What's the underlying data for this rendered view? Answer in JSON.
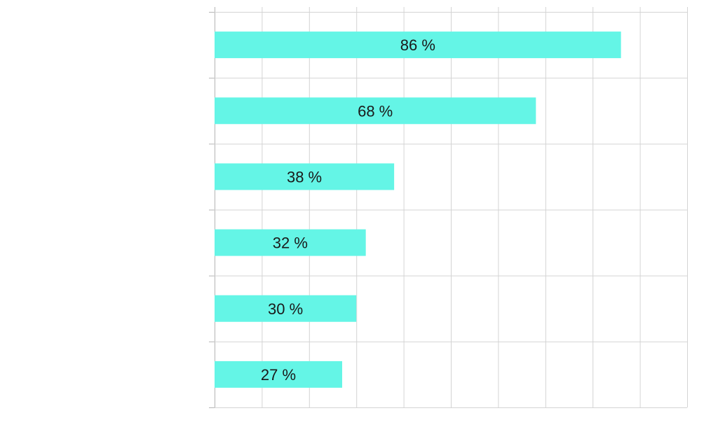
{
  "chart_data": {
    "type": "bar",
    "orientation": "horizontal",
    "categories": [
      "",
      "",
      "",
      "",
      "",
      ""
    ],
    "values": [
      86,
      68,
      38,
      32,
      30,
      27
    ],
    "data_labels": [
      "86 %",
      "68 %",
      "38 %",
      "32 %",
      "30 %",
      "27 %"
    ],
    "xlim": [
      0,
      100
    ],
    "grid": true,
    "title": "",
    "xlabel": "",
    "ylabel": ""
  },
  "colors": {
    "bar": "#64f5e6",
    "grid": "#d4d4d4",
    "axis": "#b5b5b5",
    "label": "#1a1a1a"
  }
}
